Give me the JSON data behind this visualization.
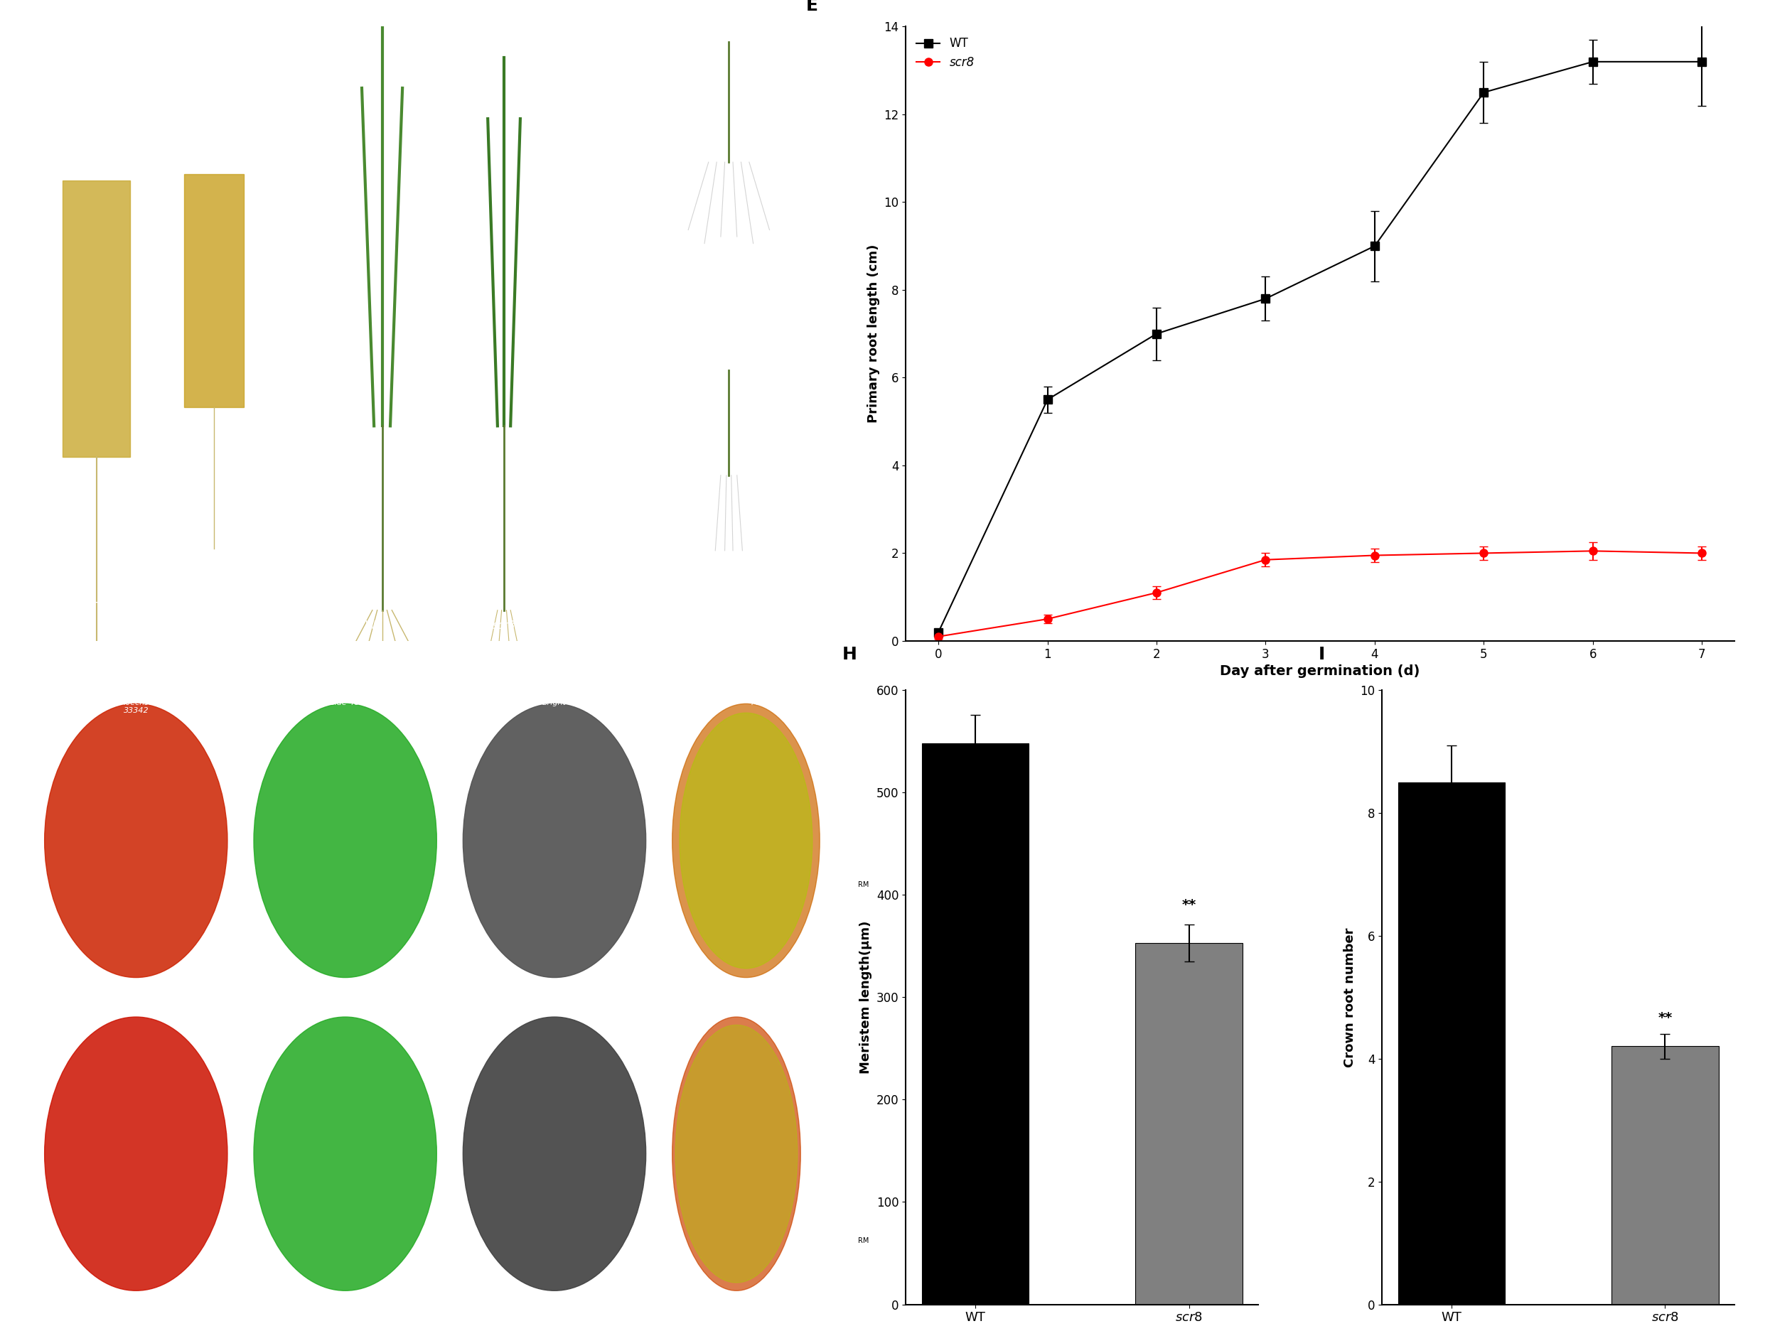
{
  "panel_E": {
    "title": "E",
    "xlabel": "Day after germination (d)",
    "ylabel": "Primary root length (cm)",
    "x": [
      0,
      1,
      2,
      3,
      4,
      5,
      6,
      7
    ],
    "wt_y": [
      0.2,
      5.5,
      7.0,
      7.8,
      9.0,
      12.5,
      13.2,
      13.2
    ],
    "wt_err": [
      0.05,
      0.3,
      0.6,
      0.5,
      0.8,
      0.7,
      0.5,
      1.0
    ],
    "scr8_y": [
      0.1,
      0.5,
      1.1,
      1.85,
      1.95,
      2.0,
      2.05,
      2.0
    ],
    "scr8_err": [
      0.05,
      0.1,
      0.15,
      0.15,
      0.15,
      0.15,
      0.2,
      0.15
    ],
    "ylim": [
      0,
      14
    ],
    "yticks": [
      0,
      2,
      4,
      6,
      8,
      10,
      12,
      14
    ],
    "xticks": [
      0,
      1,
      2,
      3,
      4,
      5,
      6,
      7
    ],
    "wt_color": "#000000",
    "scr8_color": "#ff0000",
    "legend_wt": "WT",
    "legend_scr8": "scr8"
  },
  "panel_H": {
    "title": "H",
    "ylabel": "Meristem length(μm)",
    "categories": [
      "WT",
      "scr8"
    ],
    "values": [
      548,
      353
    ],
    "errors": [
      28,
      18
    ],
    "colors": [
      "#000000",
      "#808080"
    ],
    "ylim": [
      0,
      600
    ],
    "yticks": [
      0,
      100,
      200,
      300,
      400,
      500,
      600
    ],
    "significance": "**"
  },
  "panel_I": {
    "title": "I",
    "ylabel": "Crown root number",
    "categories": [
      "WT",
      "scr8"
    ],
    "values": [
      8.5,
      4.2
    ],
    "errors": [
      0.6,
      0.2
    ],
    "colors": [
      "#000000",
      "#808080"
    ],
    "ylim": [
      0,
      10
    ],
    "yticks": [
      0,
      2,
      4,
      6,
      8,
      10
    ],
    "significance": "**"
  },
  "photo_bg": "#000000",
  "photo_bg_light": "#1a1a1a",
  "white": "#ffffff",
  "figure_bg": "#ffffff"
}
